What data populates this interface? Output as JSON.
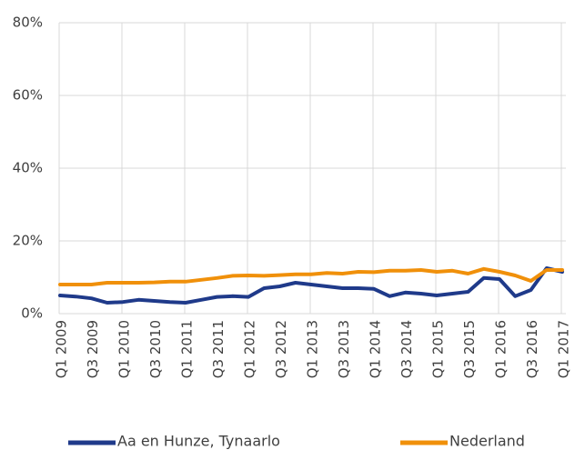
{
  "chart_data": {
    "type": "line",
    "categories": [
      "Q1 2009",
      null,
      "Q3 2009",
      null,
      "Q1 2010",
      null,
      "Q3 2010",
      null,
      "Q1 2011",
      null,
      "Q3 2011",
      null,
      "Q1 2012",
      null,
      "Q3 2012",
      null,
      "Q1 2013",
      null,
      "Q3 2013",
      null,
      "Q1 2014",
      null,
      "Q3 2014",
      null,
      "Q1 2015",
      null,
      "Q3 2015",
      null,
      "Q1 2016",
      null,
      "Q3 2016",
      null,
      "Q1 2017"
    ],
    "series": [
      {
        "name": "Aa en Hunze, Tynaarlo",
        "color": "#1f3a8a",
        "values": [
          5.0,
          4.7,
          4.2,
          3.0,
          3.2,
          3.8,
          3.5,
          3.2,
          3.0,
          3.8,
          4.6,
          4.8,
          4.6,
          7.0,
          7.5,
          8.5,
          8.0,
          7.5,
          7.0,
          7.0,
          6.8,
          4.8,
          5.8,
          5.5,
          5.0,
          5.5,
          6.0,
          9.8,
          9.5,
          4.8,
          6.5,
          12.5,
          11.5
        ]
      },
      {
        "name": "Nederland",
        "color": "#f0900a",
        "values": [
          8.0,
          8.0,
          8.0,
          8.5,
          8.5,
          8.5,
          8.6,
          8.8,
          8.8,
          9.3,
          9.8,
          10.4,
          10.5,
          10.4,
          10.6,
          10.8,
          10.8,
          11.2,
          11.0,
          11.5,
          11.4,
          11.8,
          11.8,
          12.0,
          11.5,
          11.8,
          11.0,
          12.3,
          11.5,
          10.5,
          9.0,
          12.0,
          12.0
        ]
      }
    ],
    "ylim": [
      0,
      80
    ],
    "yticks": [
      {
        "value": 0,
        "label": "0%"
      },
      {
        "value": 20,
        "label": "20%"
      },
      {
        "value": 40,
        "label": "40%"
      },
      {
        "value": 60,
        "label": "60%"
      },
      {
        "value": 80,
        "label": "80%"
      }
    ],
    "grid": true,
    "legend": "bottom"
  }
}
